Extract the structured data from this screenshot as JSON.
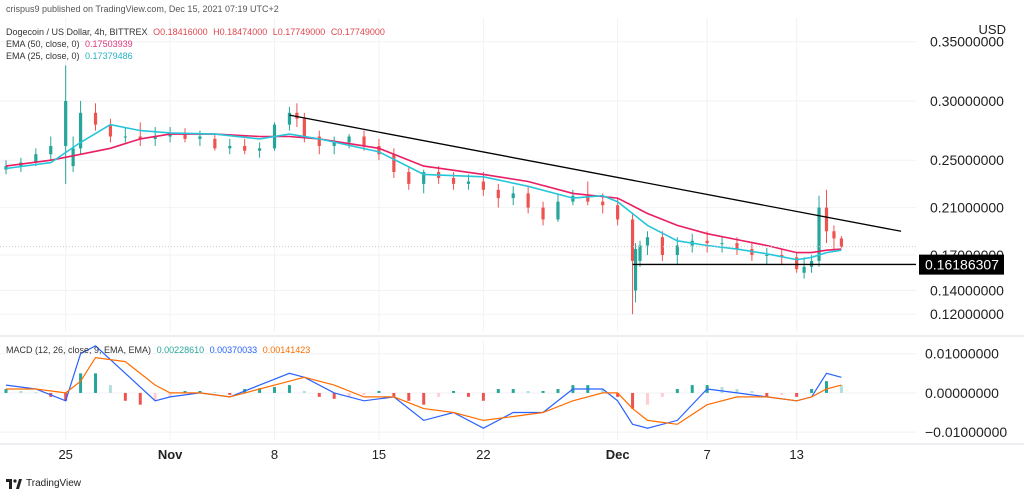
{
  "meta": {
    "published": "crispus9 published on TradingView.com, Dec 15, 2021 07:19 UTC+2",
    "currency": "USD"
  },
  "header": {
    "symbol": "Dogecoin / US Dollar, 4h, BITTREX",
    "open": "O0.18416000",
    "high": "H0.18474000",
    "low": "L0.17749000",
    "close": "C0.17749000",
    "ema50_label": "EMA (50, close, 0)",
    "ema50_value": "0.17503939",
    "ema25_label": "EMA (25, close, 0)",
    "ema25_value": "0.17379486"
  },
  "macd_header": {
    "label": "MACD (12, 26, close, 9, EMA, EMA)",
    "hist": "0.00228610",
    "macd": "0.00370033",
    "signal": "0.00141423"
  },
  "footer": {
    "brand": "TradingView"
  },
  "colors": {
    "up": "#26a69a",
    "down": "#ef5350",
    "ema50": "#e91e63",
    "ema25": "#26c6da",
    "macd": "#2962ff",
    "signal": "#ff6d00",
    "trendline": "#000000"
  },
  "chart_data": [
    {
      "type": "line",
      "title": "Dogecoin / US Dollar, 4h, BITTREX",
      "ylim": [
        0.105,
        0.37
      ],
      "y_ticks": [
        "0.35000000",
        "0.30000000",
        "0.25000000",
        "0.21000000",
        "0.17000000",
        "0.14000000",
        "0.12000000"
      ],
      "y_tick_values": [
        0.35,
        0.3,
        0.25,
        0.21,
        0.17,
        0.14,
        0.12
      ],
      "x_ticks": [
        "25",
        "Nov",
        "8",
        "15",
        "22",
        "Dec",
        "7",
        "13"
      ],
      "x_tick_days": [
        -7,
        0,
        7,
        14,
        21,
        30,
        36,
        42
      ],
      "x_range_days": [
        -11,
        50
      ],
      "price_label": "0.16186307",
      "price_label_value": 0.16186307,
      "series": [
        {
          "name": "EMA (50, close, 0)",
          "x": [
            -11,
            -8,
            -6,
            -4,
            -2,
            0,
            3,
            6,
            8,
            10,
            14,
            17,
            21,
            24,
            27,
            30,
            32,
            34,
            36,
            38,
            40,
            42,
            43,
            44,
            45
          ],
          "values": [
            0.245,
            0.25,
            0.255,
            0.26,
            0.268,
            0.272,
            0.272,
            0.27,
            0.27,
            0.268,
            0.26,
            0.245,
            0.238,
            0.232,
            0.222,
            0.218,
            0.205,
            0.195,
            0.188,
            0.183,
            0.178,
            0.172,
            0.172,
            0.174,
            0.175
          ]
        },
        {
          "name": "EMA (25, close, 0)",
          "x": [
            -11,
            -8,
            -6,
            -4,
            -2,
            0,
            3,
            6,
            8,
            10,
            14,
            17,
            21,
            24,
            27,
            29,
            30,
            32,
            34,
            36,
            38,
            40,
            42,
            43,
            44,
            45
          ],
          "values": [
            0.243,
            0.248,
            0.265,
            0.28,
            0.275,
            0.273,
            0.272,
            0.268,
            0.272,
            0.268,
            0.257,
            0.238,
            0.236,
            0.228,
            0.218,
            0.22,
            0.215,
            0.195,
            0.182,
            0.178,
            0.175,
            0.171,
            0.166,
            0.168,
            0.172,
            0.174
          ]
        }
      ],
      "trendline": {
        "x": [
          8,
          49
        ],
        "values": [
          0.288,
          0.19
        ]
      },
      "support": {
        "x": [
          31,
          44
        ],
        "values": [
          0.162,
          0.162
        ]
      },
      "candles": {
        "x": [
          -11,
          -10,
          -9,
          -8,
          -7,
          -6.5,
          -6,
          -5,
          -4,
          -3,
          -2,
          -1,
          0,
          1,
          2,
          3,
          4,
          5,
          6,
          7,
          8,
          8.5,
          9,
          10,
          11,
          12,
          13,
          14,
          15,
          16,
          17,
          18,
          19,
          20,
          21,
          22,
          23,
          24,
          25,
          26,
          27,
          28,
          29,
          30,
          31,
          31.2,
          31.5,
          32,
          33,
          34,
          35,
          36,
          37,
          38,
          39,
          40,
          41,
          42,
          42.5,
          43,
          43.5,
          44,
          44.5,
          45
        ],
        "open": [
          0.242,
          0.245,
          0.248,
          0.255,
          0.262,
          0.245,
          0.26,
          0.29,
          0.28,
          0.27,
          0.27,
          0.268,
          0.27,
          0.272,
          0.268,
          0.268,
          0.26,
          0.262,
          0.258,
          0.26,
          0.28,
          0.29,
          0.285,
          0.27,
          0.262,
          0.265,
          0.27,
          0.262,
          0.255,
          0.24,
          0.23,
          0.24,
          0.235,
          0.23,
          0.232,
          0.225,
          0.218,
          0.222,
          0.21,
          0.2,
          0.215,
          0.22,
          0.215,
          0.212,
          0.2,
          0.14,
          0.165,
          0.178,
          0.185,
          0.17,
          0.178,
          0.182,
          0.18,
          0.18,
          0.175,
          0.17,
          0.17,
          0.168,
          0.155,
          0.16,
          0.165,
          0.21,
          0.19,
          0.184
        ],
        "high": [
          0.25,
          0.252,
          0.26,
          0.27,
          0.33,
          0.27,
          0.3,
          0.298,
          0.285,
          0.278,
          0.282,
          0.278,
          0.278,
          0.277,
          0.275,
          0.272,
          0.268,
          0.268,
          0.265,
          0.282,
          0.295,
          0.298,
          0.29,
          0.275,
          0.27,
          0.272,
          0.275,
          0.268,
          0.26,
          0.245,
          0.242,
          0.245,
          0.24,
          0.238,
          0.24,
          0.23,
          0.228,
          0.228,
          0.215,
          0.222,
          0.225,
          0.232,
          0.222,
          0.218,
          0.205,
          0.18,
          0.182,
          0.19,
          0.19,
          0.185,
          0.188,
          0.19,
          0.186,
          0.185,
          0.18,
          0.176,
          0.175,
          0.172,
          0.168,
          0.17,
          0.22,
          0.225,
          0.195,
          0.186
        ],
        "low": [
          0.238,
          0.24,
          0.245,
          0.25,
          0.23,
          0.24,
          0.255,
          0.275,
          0.265,
          0.265,
          0.262,
          0.262,
          0.265,
          0.265,
          0.262,
          0.258,
          0.255,
          0.255,
          0.252,
          0.258,
          0.275,
          0.278,
          0.265,
          0.255,
          0.255,
          0.26,
          0.258,
          0.25,
          0.235,
          0.225,
          0.222,
          0.23,
          0.225,
          0.225,
          0.22,
          0.21,
          0.212,
          0.205,
          0.195,
          0.198,
          0.212,
          0.212,
          0.205,
          0.195,
          0.12,
          0.13,
          0.16,
          0.17,
          0.165,
          0.162,
          0.172,
          0.172,
          0.172,
          0.17,
          0.165,
          0.162,
          0.162,
          0.155,
          0.15,
          0.155,
          0.16,
          0.18,
          0.175,
          0.176
        ],
        "close": [
          0.245,
          0.248,
          0.255,
          0.262,
          0.3,
          0.26,
          0.29,
          0.28,
          0.27,
          0.27,
          0.268,
          0.27,
          0.272,
          0.268,
          0.27,
          0.26,
          0.262,
          0.258,
          0.26,
          0.28,
          0.29,
          0.285,
          0.27,
          0.262,
          0.265,
          0.27,
          0.262,
          0.255,
          0.24,
          0.23,
          0.24,
          0.235,
          0.23,
          0.232,
          0.225,
          0.218,
          0.222,
          0.21,
          0.2,
          0.215,
          0.22,
          0.215,
          0.212,
          0.2,
          0.165,
          0.175,
          0.178,
          0.185,
          0.17,
          0.178,
          0.182,
          0.18,
          0.18,
          0.175,
          0.17,
          0.17,
          0.168,
          0.158,
          0.16,
          0.165,
          0.21,
          0.19,
          0.184,
          0.177
        ]
      }
    },
    {
      "type": "line",
      "title": "MACD (12, 26, close, 9, EMA, EMA)",
      "ylim": [
        -0.012,
        0.0135
      ],
      "y_ticks": [
        "0.01000000",
        "0.00000000",
        "−0.01000000"
      ],
      "y_tick_values": [
        0.01,
        0.0,
        -0.01
      ],
      "series": [
        {
          "name": "MACD",
          "x": [
            -11,
            -9,
            -7,
            -6,
            -5,
            -3,
            -1,
            0,
            2,
            4,
            6,
            8,
            9,
            11,
            13,
            15,
            17,
            19,
            21,
            23,
            25,
            27,
            29,
            30,
            31,
            32,
            34,
            36,
            38,
            40,
            42,
            43,
            44,
            45
          ],
          "values": [
            0.002,
            0.001,
            -0.002,
            0.01,
            0.012,
            0.005,
            -0.002,
            -0.001,
            0.0,
            -0.001,
            0.002,
            0.005,
            0.004,
            0.0,
            -0.002,
            -0.001,
            -0.007,
            -0.005,
            -0.009,
            -0.005,
            -0.005,
            0.001,
            0.001,
            -0.002,
            -0.008,
            -0.009,
            -0.007,
            0.001,
            0.0,
            -0.001,
            -0.002,
            -0.001,
            0.005,
            0.004
          ]
        },
        {
          "name": "Signal",
          "x": [
            -11,
            -9,
            -7,
            -6,
            -5,
            -3,
            -1,
            0,
            2,
            4,
            6,
            8,
            9,
            11,
            13,
            15,
            17,
            19,
            21,
            23,
            25,
            27,
            29,
            30,
            31,
            32,
            34,
            36,
            38,
            40,
            42,
            43,
            44,
            45
          ],
          "values": [
            0.001,
            0.001,
            0.0,
            0.003,
            0.009,
            0.008,
            0.002,
            0.0,
            0.0,
            -0.001,
            0.001,
            0.003,
            0.004,
            0.002,
            -0.001,
            -0.001,
            -0.004,
            -0.005,
            -0.007,
            -0.006,
            -0.005,
            -0.002,
            0.0,
            0.0,
            -0.004,
            -0.007,
            -0.008,
            -0.003,
            -0.001,
            -0.001,
            -0.002,
            -0.001,
            0.001,
            0.002
          ]
        }
      ],
      "histogram": {
        "x": [
          -11,
          -10,
          -9,
          -8,
          -7,
          -6,
          -5,
          -4,
          -3,
          -2,
          -1,
          0,
          1,
          2,
          3,
          4,
          5,
          6,
          7,
          8,
          9,
          10,
          11,
          12,
          13,
          14,
          15,
          16,
          17,
          18,
          19,
          20,
          21,
          22,
          23,
          24,
          25,
          26,
          27,
          28,
          29,
          30,
          31,
          32,
          33,
          34,
          35,
          36,
          37,
          38,
          39,
          40,
          41,
          42,
          43,
          44,
          45
        ],
        "values": [
          0.001,
          0.0005,
          0.0002,
          -0.001,
          -0.002,
          0.005,
          0.005,
          0.002,
          -0.002,
          -0.003,
          -0.002,
          -0.001,
          0.0005,
          0.0005,
          0.0002,
          -0.0005,
          0.001,
          0.0012,
          0.0015,
          0.002,
          0.0005,
          -0.001,
          -0.0015,
          -0.001,
          -0.0005,
          0.0005,
          -0.001,
          -0.002,
          -0.003,
          -0.001,
          0.0005,
          -0.001,
          -0.002,
          0.001,
          0.001,
          0.0005,
          0.0005,
          0.001,
          0.002,
          0.002,
          0.001,
          -0.001,
          -0.004,
          -0.003,
          -0.001,
          0.001,
          0.002,
          0.002,
          0.0015,
          0.001,
          0.0005,
          -0.001,
          -0.0005,
          -0.001,
          0.001,
          0.003,
          0.002
        ]
      }
    }
  ]
}
